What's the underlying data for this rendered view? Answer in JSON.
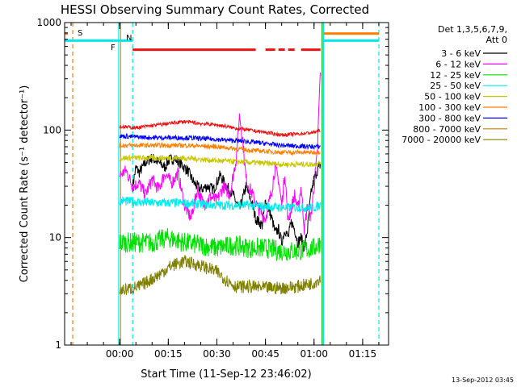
{
  "chart_data": {
    "type": "line",
    "title": "HESSI Observing Summary Count Rates, Corrected",
    "xlabel": "Start Time (11-Sep-12 23:46:02)",
    "ylabel": "Corrected Count Rate (s⁻¹ detector⁻¹)",
    "y_scale": "log",
    "ylim": [
      1,
      1000
    ],
    "xlim_min": [
      -17,
      83
    ],
    "x_ticks": [
      {
        "m": 0,
        "label": "00:00"
      },
      {
        "m": 15,
        "label": "00:15"
      },
      {
        "m": 30,
        "label": "00:30"
      },
      {
        "m": 45,
        "label": "00:45"
      },
      {
        "m": 60,
        "label": "01:00"
      },
      {
        "m": 75,
        "label": "01:15"
      }
    ],
    "y_ticks": [
      {
        "v": 1,
        "label": "1"
      },
      {
        "v": 10,
        "label": "10"
      },
      {
        "v": 100,
        "label": "100"
      },
      {
        "v": 1000,
        "label": "1000"
      }
    ],
    "legend": {
      "position": "right",
      "header": [
        "Det 1,3,5,6,7,9,",
        "Att 0"
      ]
    },
    "flags": [
      {
        "label": "S",
        "color": "#ff7f00"
      },
      {
        "label": "N",
        "color": "#00e8e8"
      },
      {
        "label": "F",
        "color": "#ee1111"
      }
    ],
    "vertical_markers": [
      {
        "m": -14.5,
        "color": "#ff7f00",
        "dashed": true
      },
      {
        "m": -0.3,
        "color": "#00e8e8",
        "dashed": false
      },
      {
        "m": 0.3,
        "color": "#c8a000",
        "dashed": false
      },
      {
        "m": 4,
        "color": "#00e8e8",
        "dashed": true
      },
      {
        "m": 62.5,
        "color": "#00b000",
        "dashed": false
      },
      {
        "m": 62.9,
        "color": "#00e8e8",
        "dashed": false
      },
      {
        "m": 80,
        "color": "#00e8e8",
        "dashed": true
      }
    ],
    "segments": {
      "orange_bar": [
        [
          -17,
          -16
        ],
        [
          63,
          80
        ]
      ],
      "cyan_bar": [
        [
          -17,
          4
        ],
        [
          63,
          80
        ]
      ],
      "flare_bar": [
        [
          4,
          42
        ],
        [
          45,
          48
        ],
        [
          49,
          51
        ],
        [
          52,
          54
        ],
        [
          56,
          62
        ]
      ]
    },
    "series": [
      {
        "name": "3 - 6 keV",
        "color": "#000000",
        "start": 4,
        "end": 62,
        "points": [
          [
            4,
            30
          ],
          [
            5,
            45
          ],
          [
            6,
            40
          ],
          [
            8,
            50
          ],
          [
            10,
            55
          ],
          [
            12,
            50
          ],
          [
            14,
            45
          ],
          [
            15,
            52
          ],
          [
            17,
            55
          ],
          [
            19,
            48
          ],
          [
            21,
            42
          ],
          [
            23,
            32
          ],
          [
            25,
            28
          ],
          [
            27,
            30
          ],
          [
            29,
            28
          ],
          [
            31,
            38
          ],
          [
            33,
            30
          ],
          [
            35,
            25
          ],
          [
            37,
            18
          ],
          [
            39,
            30
          ],
          [
            41,
            20
          ],
          [
            42,
            15
          ],
          [
            44,
            13
          ],
          [
            45,
            22
          ],
          [
            46,
            18
          ],
          [
            47,
            15
          ],
          [
            48,
            11
          ],
          [
            49,
            12
          ],
          [
            50,
            9
          ],
          [
            51,
            12
          ],
          [
            52,
            10
          ],
          [
            53,
            14
          ],
          [
            54,
            12
          ],
          [
            55,
            9
          ],
          [
            56,
            10
          ],
          [
            57,
            8
          ],
          [
            58,
            12
          ],
          [
            59,
            25
          ],
          [
            60,
            35
          ],
          [
            61,
            42
          ],
          [
            62,
            48
          ]
        ]
      },
      {
        "name": "6 - 12 keV",
        "color": "#ff00ff",
        "start": 0,
        "end": 62,
        "points": [
          [
            0,
            38
          ],
          [
            2,
            42
          ],
          [
            4,
            30
          ],
          [
            6,
            32
          ],
          [
            8,
            25
          ],
          [
            10,
            35
          ],
          [
            12,
            28
          ],
          [
            14,
            40
          ],
          [
            16,
            32
          ],
          [
            18,
            40
          ],
          [
            20,
            20
          ],
          [
            22,
            15
          ],
          [
            24,
            28
          ],
          [
            26,
            20
          ],
          [
            28,
            24
          ],
          [
            30,
            22
          ],
          [
            32,
            30
          ],
          [
            34,
            25
          ],
          [
            36,
            55
          ],
          [
            37,
            140
          ],
          [
            38,
            80
          ],
          [
            39,
            35
          ],
          [
            41,
            25
          ],
          [
            43,
            18
          ],
          [
            45,
            15
          ],
          [
            47,
            28
          ],
          [
            48,
            45
          ],
          [
            49,
            35
          ],
          [
            50,
            20
          ],
          [
            51,
            40
          ],
          [
            52,
            14
          ],
          [
            54,
            25
          ],
          [
            55,
            18
          ],
          [
            56,
            30
          ],
          [
            57,
            12
          ],
          [
            58,
            20
          ],
          [
            59,
            15
          ],
          [
            60,
            30
          ],
          [
            61,
            60
          ],
          [
            61.6,
            200
          ],
          [
            62,
            380
          ],
          [
            62.4,
            120
          ]
        ]
      },
      {
        "name": "12 - 25 keV",
        "color": "#00e000",
        "start": 0,
        "end": 62,
        "points": [
          [
            0,
            9
          ],
          [
            10,
            9
          ],
          [
            15,
            10
          ],
          [
            20,
            9
          ],
          [
            25,
            8.5
          ],
          [
            30,
            8
          ],
          [
            35,
            8.5
          ],
          [
            40,
            8
          ],
          [
            45,
            8
          ],
          [
            50,
            7.5
          ],
          [
            55,
            7.5
          ],
          [
            60,
            8
          ],
          [
            62,
            9
          ]
        ]
      },
      {
        "name": "25 - 50 keV",
        "color": "#00eaea",
        "start": 0,
        "end": 62,
        "points": [
          [
            0,
            22
          ],
          [
            10,
            21
          ],
          [
            20,
            21
          ],
          [
            30,
            20
          ],
          [
            40,
            20
          ],
          [
            50,
            19
          ],
          [
            60,
            19
          ],
          [
            62,
            20
          ]
        ]
      },
      {
        "name": "50 - 100 keV",
        "color": "#c8c800",
        "start": 0,
        "end": 62,
        "points": [
          [
            0,
            55
          ],
          [
            10,
            55
          ],
          [
            20,
            55
          ],
          [
            30,
            52
          ],
          [
            40,
            50
          ],
          [
            50,
            48
          ],
          [
            60,
            48
          ],
          [
            62,
            50
          ]
        ]
      },
      {
        "name": "100 - 300 keV",
        "color": "#ff7f00",
        "start": 0,
        "end": 62,
        "points": [
          [
            0,
            72
          ],
          [
            10,
            72
          ],
          [
            20,
            72
          ],
          [
            30,
            70
          ],
          [
            40,
            65
          ],
          [
            50,
            62
          ],
          [
            60,
            62
          ],
          [
            62,
            63
          ]
        ]
      },
      {
        "name": "300 - 800 keV",
        "color": "#0000ff",
        "start": 0,
        "end": 62,
        "points": [
          [
            0,
            88
          ],
          [
            10,
            85
          ],
          [
            20,
            85
          ],
          [
            30,
            82
          ],
          [
            40,
            78
          ],
          [
            50,
            72
          ],
          [
            60,
            70
          ],
          [
            62,
            70
          ]
        ]
      },
      {
        "name": "800 - 7000 keV",
        "color": "#cc7f00",
        "start": 0,
        "end": 62,
        "points": [
          [
            0,
            90
          ],
          [
            10,
            90
          ],
          [
            20,
            90
          ],
          [
            30,
            90
          ],
          [
            40,
            90
          ],
          [
            50,
            90
          ],
          [
            60,
            90
          ],
          [
            62,
            90
          ]
        ]
      },
      {
        "name": "7000 - 20000 keV",
        "color": "#808000",
        "start": 0,
        "end": 62,
        "points": [
          [
            0,
            3.2
          ],
          [
            6,
            3.5
          ],
          [
            8,
            3.8
          ],
          [
            12,
            4.5
          ],
          [
            16,
            5.5
          ],
          [
            20,
            6
          ],
          [
            25,
            5.5
          ],
          [
            30,
            4.8
          ],
          [
            33,
            4
          ],
          [
            36,
            3.5
          ],
          [
            40,
            3.5
          ],
          [
            45,
            3.4
          ],
          [
            50,
            3.4
          ],
          [
            55,
            3.5
          ],
          [
            60,
            3.8
          ],
          [
            62,
            4.2
          ]
        ]
      }
    ],
    "red_top": {
      "color": "#ee1111",
      "start": 0,
      "end": 62,
      "points": [
        [
          0,
          108
        ],
        [
          5,
          105
        ],
        [
          10,
          110
        ],
        [
          15,
          115
        ],
        [
          20,
          120
        ],
        [
          25,
          115
        ],
        [
          30,
          112
        ],
        [
          35,
          105
        ],
        [
          40,
          100
        ],
        [
          45,
          95
        ],
        [
          50,
          90
        ],
        [
          55,
          92
        ],
        [
          60,
          95
        ],
        [
          62,
          100
        ]
      ]
    }
  },
  "footer": {
    "timestamp": "13-Sep-2012 03:45"
  }
}
